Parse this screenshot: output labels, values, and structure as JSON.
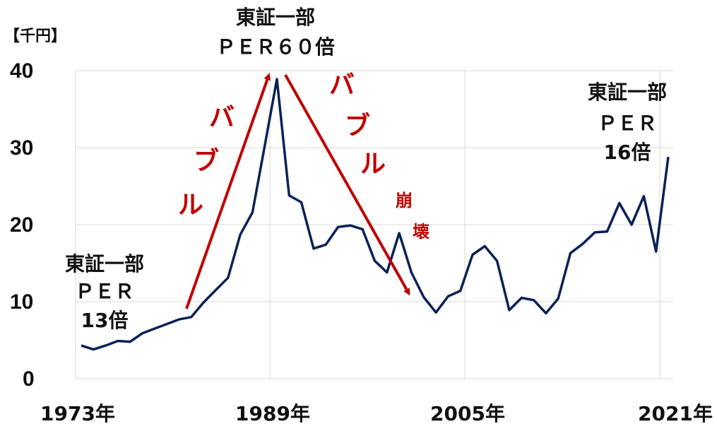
{
  "chart_data": {
    "type": "line",
    "unit_label": "【千円】",
    "ylim": [
      0,
      40
    ],
    "yticks": [
      0,
      10,
      20,
      30,
      40
    ],
    "ytick_labels": [
      "0",
      "10",
      "20",
      "30",
      "40"
    ],
    "xlim": [
      1973,
      2021
    ],
    "xtick_labels": [
      "1973年",
      "1989年",
      "2005年",
      "2021年"
    ],
    "xtick_values": [
      1973,
      1989,
      2005,
      2021
    ],
    "grid": true,
    "line_color": "#0b2157",
    "accent_color": "#c00000",
    "series": [
      {
        "x": [
          1973,
          1974,
          1975,
          1976,
          1977,
          1978,
          1979,
          1980,
          1981,
          1982,
          1983,
          1984,
          1985,
          1986,
          1987,
          1988,
          1989,
          1990,
          1991,
          1992,
          1993,
          1994,
          1995,
          1996,
          1997,
          1998,
          1999,
          2000,
          2001,
          2002,
          2003,
          2004,
          2005,
          2006,
          2007,
          2008,
          2009,
          2010,
          2011,
          2012,
          2013,
          2014,
          2015,
          2016,
          2017,
          2018,
          2019,
          2020,
          2021
        ],
        "values": [
          4.3,
          3.8,
          4.3,
          4.9,
          4.8,
          5.9,
          6.5,
          7.1,
          7.7,
          8.0,
          9.9,
          11.5,
          13.1,
          18.7,
          21.6,
          30.2,
          38.9,
          23.8,
          22.9,
          16.9,
          17.4,
          19.7,
          19.9,
          19.4,
          15.3,
          13.8,
          18.9,
          13.8,
          10.6,
          8.6,
          10.7,
          11.4,
          16.1,
          17.2,
          15.3,
          8.9,
          10.5,
          10.2,
          8.5,
          10.4,
          16.3,
          17.5,
          19.0,
          19.1,
          22.8,
          20.0,
          23.7,
          16.5,
          28.8
        ]
      }
    ],
    "annotations": [
      {
        "id": "left",
        "lines": [
          "東証一部",
          "ＰＥＲ",
          "13倍"
        ]
      },
      {
        "id": "top",
        "lines": [
          "東証一部",
          "ＰＥＲ６０倍"
        ]
      },
      {
        "id": "right",
        "lines": [
          "東証一部",
          "ＰＥＲ",
          "16倍"
        ]
      }
    ],
    "bubble_text": [
      "バ",
      "ブ",
      "ル"
    ],
    "collapse_text": [
      "バ",
      "ブ",
      "ル",
      "崩",
      "壊"
    ]
  }
}
